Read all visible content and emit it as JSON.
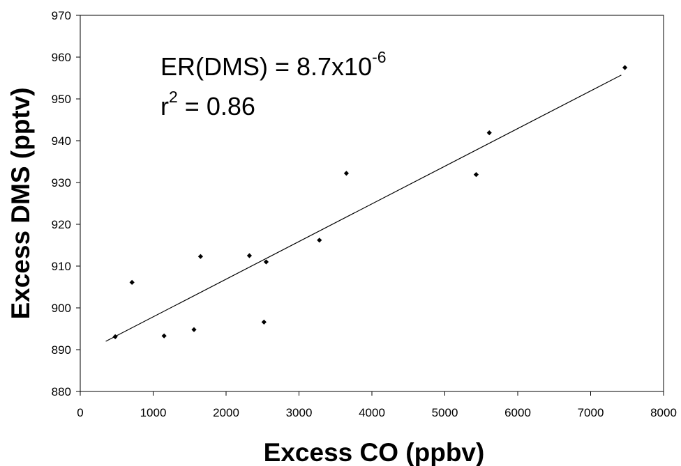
{
  "chart_data": {
    "type": "scatter",
    "xlabel": "Excess CO (ppbv)",
    "ylabel": "Excess DMS (pptv)",
    "xlim": [
      0,
      8000
    ],
    "ylim": [
      880,
      970
    ],
    "x_ticks": [
      "0",
      "1000",
      "2000",
      "3000",
      "4000",
      "5000",
      "6000",
      "7000",
      "8000"
    ],
    "y_ticks": [
      "880",
      "890",
      "900",
      "910",
      "920",
      "930",
      "940",
      "950",
      "960",
      "970"
    ],
    "points": [
      {
        "x": 480,
        "y": 893.1
      },
      {
        "x": 710,
        "y": 906.1
      },
      {
        "x": 1150,
        "y": 893.3
      },
      {
        "x": 1560,
        "y": 894.8
      },
      {
        "x": 1650,
        "y": 912.3
      },
      {
        "x": 2320,
        "y": 912.5
      },
      {
        "x": 2520,
        "y": 896.6
      },
      {
        "x": 2550,
        "y": 911.0
      },
      {
        "x": 3280,
        "y": 916.2
      },
      {
        "x": 3650,
        "y": 932.2
      },
      {
        "x": 5430,
        "y": 931.9
      },
      {
        "x": 5610,
        "y": 941.9
      },
      {
        "x": 7470,
        "y": 957.5
      }
    ],
    "trendline": {
      "x": [
        350,
        7420
      ],
      "y": [
        892.0,
        955.7
      ]
    },
    "annotation": {
      "line1_base": "ER(DMS) = 8.7x10",
      "line1_sup": "-6",
      "line2_base": "r",
      "line2_sup": "2",
      "line2_rest": " = 0.86"
    },
    "grid": false,
    "legend": "none"
  }
}
